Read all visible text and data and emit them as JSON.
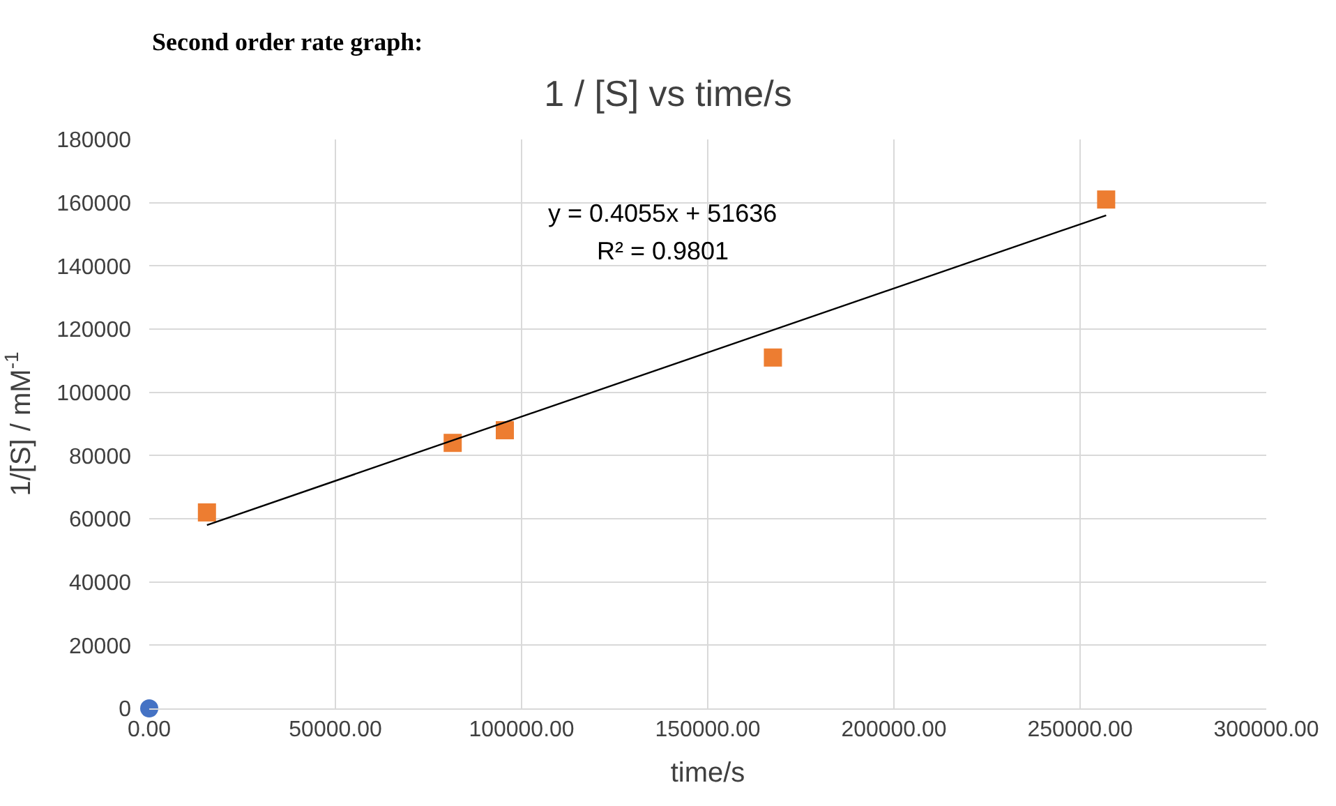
{
  "chart_data": {
    "type": "scatter",
    "title": "1 / [S] vs time/s",
    "xlabel": "time/s",
    "ylabel": "1/[S] / mM$^{-1}$",
    "annotations": [
      "Second order rate graph:",
      "y = 0.4055x + 51636",
      "R² = 0.9801"
    ],
    "series": [
      {
        "color": "#4472c4",
        "marker": "circle",
        "x": [
          0
        ],
        "values": [
          0
        ]
      },
      {
        "color": "#ed7d31",
        "marker": "square",
        "x": [
          15500,
          81500,
          95500,
          167500,
          257000
        ],
        "values": [
          62000,
          84000,
          88000,
          111000,
          161000
        ]
      },
      {
        "type": "line",
        "color": "#000000",
        "marker": "none",
        "line_style": "solid",
        "x": [
          15500,
          257000
        ],
        "values": [
          58000,
          156000
        ]
      }
    ],
    "xlim": [
      0,
      300000
    ],
    "ylim": [
      0,
      180000
    ],
    "xticks": [
      {
        "value": 0,
        "label": "0.00"
      },
      {
        "value": 50000,
        "label": "50000.00"
      },
      {
        "value": 100000,
        "label": "100000.00"
      },
      {
        "value": 150000,
        "label": "150000.00"
      },
      {
        "value": 200000,
        "label": "200000.00"
      },
      {
        "value": 250000,
        "label": "250000.00"
      },
      {
        "value": 300000,
        "label": "300000.00"
      }
    ],
    "yticks": [
      0,
      20000,
      40000,
      60000,
      80000,
      100000,
      120000,
      140000,
      160000,
      180000
    ],
    "grid": true
  }
}
